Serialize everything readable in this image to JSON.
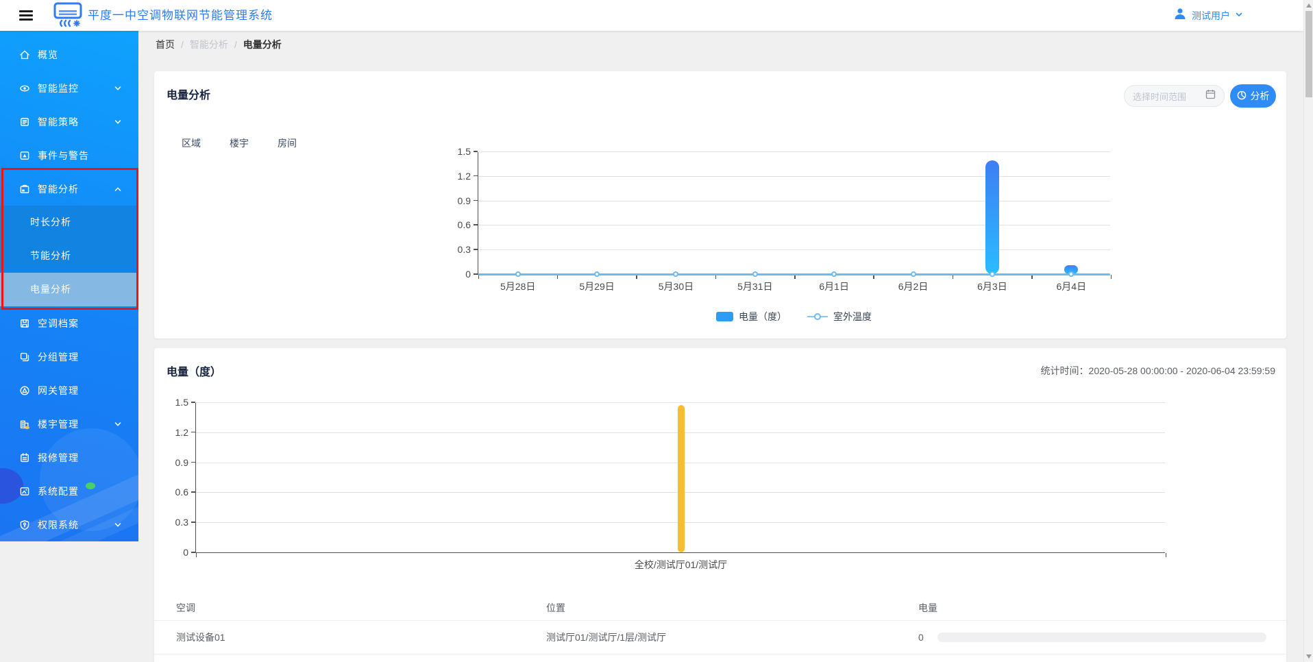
{
  "header": {
    "title": "平度一中空调物联网节能管理系统",
    "user": "测试用户"
  },
  "sidebar": {
    "items": [
      {
        "id": "overview",
        "label": "概览",
        "icon": "home-icon"
      },
      {
        "id": "monitor",
        "label": "智能监控",
        "icon": "eye-icon",
        "expandable": true
      },
      {
        "id": "strategy",
        "label": "智能策略",
        "icon": "strategy-icon",
        "expandable": true
      },
      {
        "id": "events",
        "label": "事件与警告",
        "icon": "alert-icon"
      },
      {
        "id": "analysis",
        "label": "智能分析",
        "icon": "analysis-icon",
        "expandable": true,
        "expanded": true,
        "children": [
          {
            "id": "duration",
            "label": "时长分析"
          },
          {
            "id": "saving",
            "label": "节能分析"
          },
          {
            "id": "power",
            "label": "电量分析",
            "selected": true
          }
        ]
      },
      {
        "id": "archive",
        "label": "空调档案",
        "icon": "archive-icon"
      },
      {
        "id": "groups",
        "label": "分组管理",
        "icon": "group-icon"
      },
      {
        "id": "gateway",
        "label": "网关管理",
        "icon": "gateway-icon"
      },
      {
        "id": "building",
        "label": "楼宇管理",
        "icon": "building-icon",
        "expandable": true
      },
      {
        "id": "repair",
        "label": "报修管理",
        "icon": "repair-icon",
        "dot": "#4AD164"
      },
      {
        "id": "system",
        "label": "系统配置",
        "icon": "config-icon"
      },
      {
        "id": "permission",
        "label": "权限系统",
        "icon": "shield-icon",
        "expandable": true
      }
    ]
  },
  "breadcrumb": [
    "首页",
    "智能分析",
    "电量分析"
  ],
  "analysis_card": {
    "title": "电量分析",
    "date_placeholder": "选择时间范围",
    "analyze_label": "分析",
    "tabs": [
      "区域",
      "楼宇",
      "房间"
    ]
  },
  "summary_card": {
    "title": "电量（度）",
    "stat_label": "统计时间：",
    "stat_value": "2020-05-28 00:00:00 - 2020-06-04 23:59:59"
  },
  "table": {
    "columns": [
      "空调",
      "位置",
      "电量"
    ],
    "rows": [
      {
        "name": "测试设备01",
        "location": "测试厅01/测试厅/1层/测试厅",
        "power": "0"
      }
    ]
  },
  "chart_data": [
    {
      "type": "bar",
      "categories": [
        "5月28日",
        "5月29日",
        "5月30日",
        "5月31日",
        "6月1日",
        "6月2日",
        "6月3日",
        "6月4日"
      ],
      "series": [
        {
          "name": "电量（度）",
          "type": "bar",
          "values": [
            0,
            0,
            0,
            0,
            0,
            0,
            1.39,
            0.08
          ],
          "color_top": "#3E7EF3",
          "color_bottom": "#2ABCFF"
        },
        {
          "name": "室外温度",
          "type": "line",
          "values": [
            0,
            0,
            0,
            0,
            0,
            0,
            0,
            0
          ],
          "color": "#6FB9F2"
        }
      ],
      "ylim": [
        0,
        1.5
      ],
      "yticks": [
        0,
        0.3,
        0.6,
        0.9,
        1.2,
        1.5
      ],
      "grid": true,
      "legend_position": "bottom"
    },
    {
      "type": "bar",
      "categories": [
        "全校/测试厅01/测试厅"
      ],
      "series": [
        {
          "name": "电量（度）",
          "type": "bar",
          "values": [
            1.47
          ],
          "color": "#FBBD2F"
        }
      ],
      "ylim": [
        0,
        1.5
      ],
      "yticks": [
        0,
        0.3,
        0.6,
        0.9,
        1.2,
        1.5
      ],
      "grid": true,
      "legend_position": "none"
    }
  ],
  "colors": {
    "accent": "#2F8CF6",
    "sidebar_blue": "#1196FB",
    "submenu_blue": "#1383E2",
    "selected_item": "#85B8E3",
    "annotation_red": "#EC1414",
    "bar_gradient_top": "#3E7EF3",
    "bar_gradient_bottom": "#2ABCFF",
    "bar_yellow": "#FBBD2F",
    "line_blue": "#6FB9F2",
    "legend_swatch": "#2D9CF4"
  }
}
